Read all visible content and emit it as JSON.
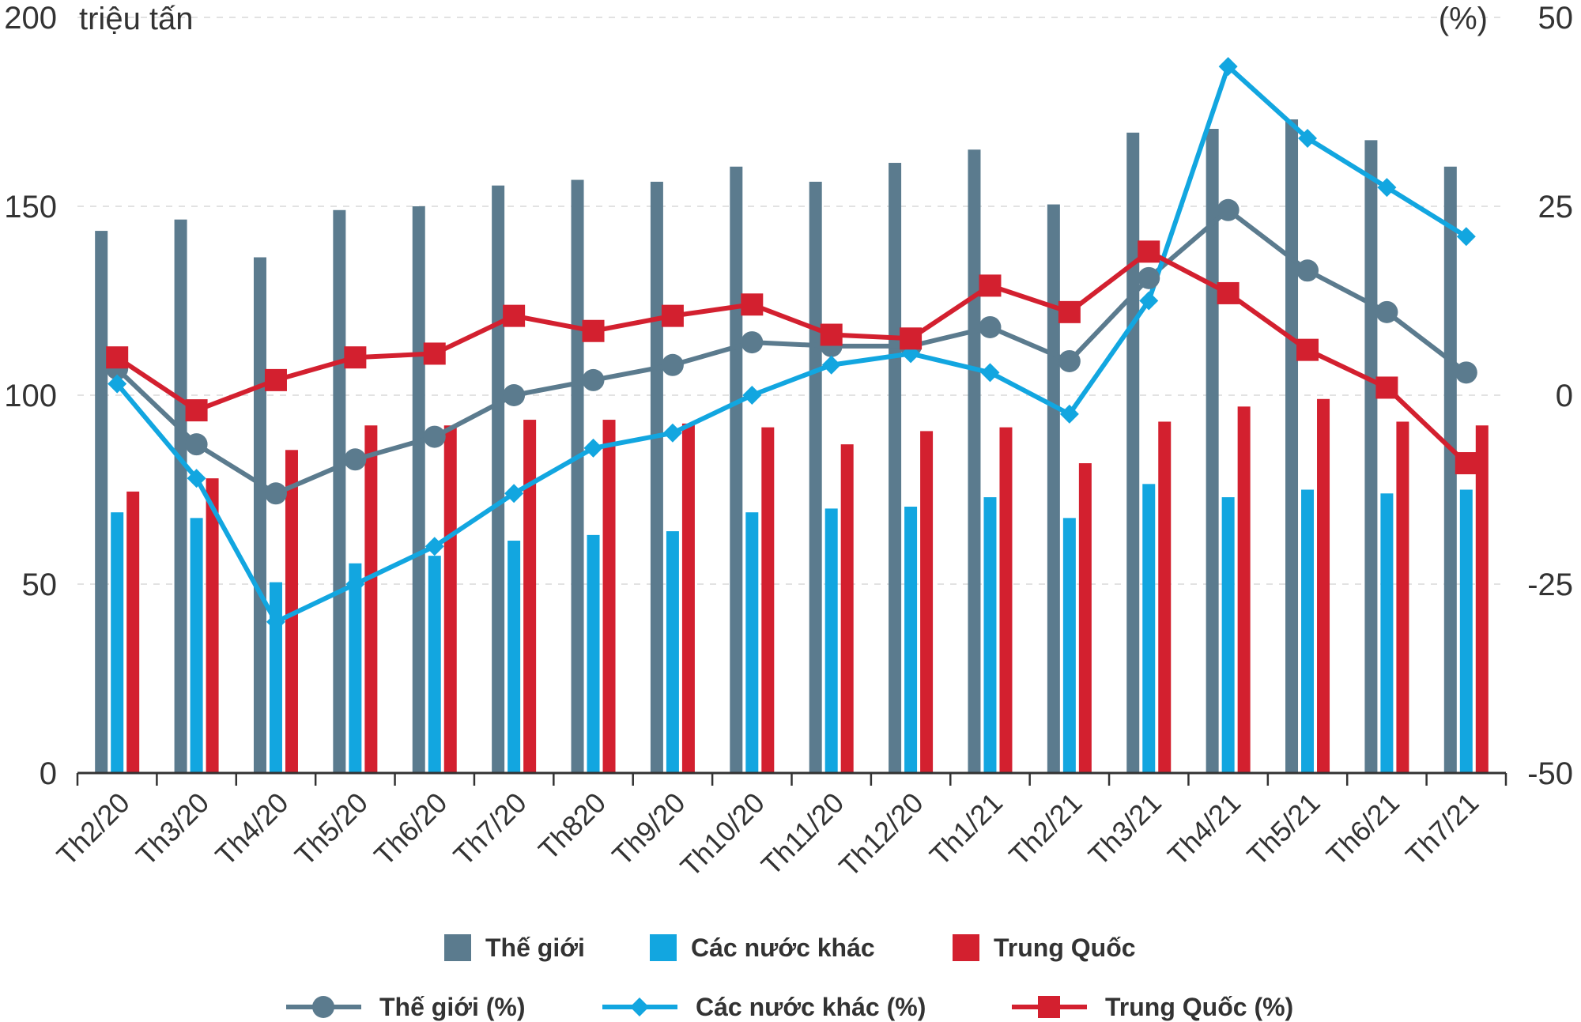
{
  "chart_data": {
    "type": "bar",
    "left_unit": "triệu tấn",
    "right_unit": "(%)",
    "categories": [
      "Th2/20",
      "Th3/20",
      "Th4/20",
      "Th5/20",
      "Th6/20",
      "Th7/20",
      "Th820",
      "Th9/20",
      "Th10/20",
      "Th11/20",
      "Th12/20",
      "Th1/21",
      "Th2/21",
      "Th3/21",
      "Th4/21",
      "Th5/21",
      "Th6/21",
      "Th7/21"
    ],
    "y_left": {
      "ylim": [
        0,
        200
      ],
      "ticks": [
        "0",
        "50",
        "100",
        "150",
        "200"
      ]
    },
    "y_right": {
      "ylim": [
        -50,
        50
      ],
      "ticks": [
        "-50",
        "-25",
        "0",
        "25",
        "50"
      ]
    },
    "grid": true,
    "legend_position": "bottom",
    "bar_series": [
      {
        "name": "Thế giới",
        "color": "#5b7b8e",
        "values": [
          143.5,
          146.5,
          136.5,
          149,
          150,
          155.5,
          157,
          156.5,
          160.5,
          156.5,
          161.5,
          165,
          150.5,
          169.5,
          170.5,
          173,
          167.5,
          160.5
        ]
      },
      {
        "name": "Các nước khác",
        "color": "#12a6e0",
        "values": [
          69,
          67.5,
          50.5,
          55.5,
          57.5,
          61.5,
          63,
          64,
          69,
          70,
          70.5,
          73,
          67.5,
          76.5,
          73,
          75,
          74,
          75
        ]
      },
      {
        "name": "Trung Quốc",
        "color": "#d3202f",
        "values": [
          74.5,
          78,
          85.5,
          92,
          92,
          93.5,
          93.5,
          92.5,
          91.5,
          87,
          90.5,
          91.5,
          82,
          93,
          97,
          99,
          93,
          92
        ]
      }
    ],
    "line_series": [
      {
        "name": "Thế giới (%)",
        "color": "#5b7b8e",
        "marker": "circle",
        "values": [
          3.5,
          -6.5,
          -13,
          -8.5,
          -5.5,
          0,
          2,
          4,
          7,
          6.5,
          6.5,
          9,
          4.5,
          15.5,
          24.5,
          16.5,
          11,
          3
        ]
      },
      {
        "name": "Các nước khác (%)",
        "color": "#12a6e0",
        "marker": "diamond",
        "values": [
          1.5,
          -11,
          -30,
          -25,
          -20,
          -13,
          -7,
          -5,
          0,
          4,
          5.5,
          3,
          -2.5,
          12.5,
          43.5,
          34,
          27.5,
          21
        ]
      },
      {
        "name": "Trung Quốc (%)",
        "color": "#d3202f",
        "marker": "square",
        "values": [
          5,
          -2,
          2,
          5,
          5.5,
          10.5,
          8.5,
          10.5,
          12,
          8,
          7.5,
          14.5,
          11,
          19,
          13.5,
          6,
          1,
          -9
        ]
      }
    ]
  }
}
